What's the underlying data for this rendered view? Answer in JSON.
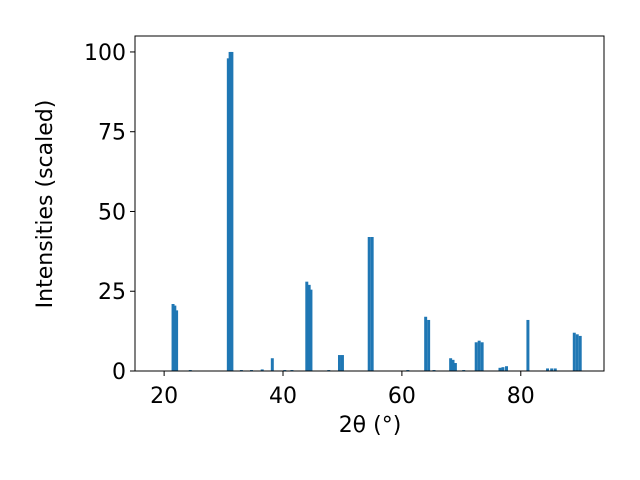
{
  "chart_data": {
    "type": "bar",
    "xlabel": "2θ (°)",
    "ylabel": "Intensities (scaled)",
    "x": [
      21.5,
      21.8,
      22.1,
      24.4,
      30.8,
      31.1,
      31.4,
      33.0,
      34.7,
      36.5,
      38.2,
      40.3,
      41.5,
      44.0,
      44.4,
      44.7,
      47.7,
      49.5,
      50.0,
      54.5,
      55.0,
      61.0,
      64.0,
      64.5,
      65.4,
      68.2,
      68.6,
      69.0,
      70.4,
      72.5,
      73.0,
      73.5,
      76.5,
      77.0,
      77.6,
      81.2,
      84.5,
      85.2,
      85.8,
      89.0,
      89.5,
      90.0
    ],
    "values": [
      21,
      20.5,
      19,
      0.3,
      98,
      100,
      100,
      0.3,
      0.3,
      0.5,
      4,
      0.3,
      0.3,
      28,
      27,
      25.5,
      0.3,
      5,
      5,
      42,
      42,
      0.3,
      17,
      16,
      0.3,
      4,
      3.5,
      2.5,
      0.3,
      9,
      9.5,
      9,
      1,
      1.2,
      1.5,
      16,
      0.8,
      0.8,
      0.8,
      12,
      11.5,
      11
    ],
    "color": "#1f77b4",
    "xlim": [
      15.1,
      94
    ],
    "ylim": [
      0,
      105
    ],
    "xticks": [
      20,
      40,
      60,
      80
    ],
    "yticks": [
      0,
      25,
      50,
      75,
      100
    ]
  }
}
